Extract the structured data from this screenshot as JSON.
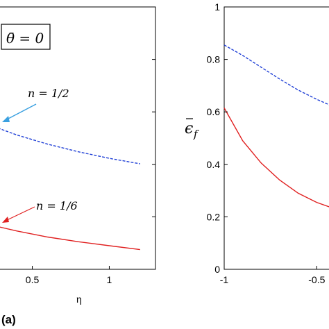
{
  "figure_label": "(a)",
  "chart_data": [
    {
      "type": "line",
      "xlabel": "η",
      "x_ticks": [
        "0.5",
        "1"
      ],
      "xlim": [
        0.2,
        1.3
      ],
      "ylim": [
        0.0,
        1.0
      ],
      "legend_box": "θ̄ = 0",
      "grid": false,
      "series": [
        {
          "name": "n = 1/2",
          "color": "#1f3fd6",
          "style": "dashed",
          "x": [
            0.2,
            0.4,
            0.6,
            0.8,
            1.0,
            1.2
          ],
          "y": [
            0.555,
            0.512,
            0.477,
            0.448,
            0.423,
            0.402
          ]
        },
        {
          "name": "n = 1/6",
          "color": "#e02020",
          "style": "solid",
          "x": [
            0.2,
            0.4,
            0.6,
            0.8,
            1.0,
            1.2
          ],
          "y": [
            0.173,
            0.146,
            0.123,
            0.105,
            0.09,
            0.075
          ]
        }
      ],
      "annotations": [
        {
          "text": "n = 1/2",
          "color": "#1f3fd6"
        },
        {
          "text": "n = 1/6",
          "color": "#e02020"
        }
      ]
    },
    {
      "type": "line",
      "ylabel": "ε̄_f",
      "xlim": [
        -1.0,
        -0.25
      ],
      "ylim": [
        0,
        1
      ],
      "x_ticks": [
        "-1",
        "-0.5"
      ],
      "y_ticks": [
        "0",
        "0.2",
        "0.4",
        "0.6",
        "0.8",
        "1"
      ],
      "grid": false,
      "series": [
        {
          "color": "#1f3fd6",
          "style": "dashed",
          "x": [
            -1.0,
            -0.9,
            -0.8,
            -0.7,
            -0.6,
            -0.5,
            -0.4
          ],
          "y": [
            0.855,
            0.815,
            0.77,
            0.725,
            0.683,
            0.648,
            0.617
          ]
        },
        {
          "color": "#e02020",
          "style": "solid",
          "x": [
            -1.0,
            -0.9,
            -0.8,
            -0.7,
            -0.6,
            -0.5,
            -0.4
          ],
          "y": [
            0.615,
            0.49,
            0.405,
            0.34,
            0.29,
            0.255,
            0.23
          ]
        }
      ]
    }
  ]
}
